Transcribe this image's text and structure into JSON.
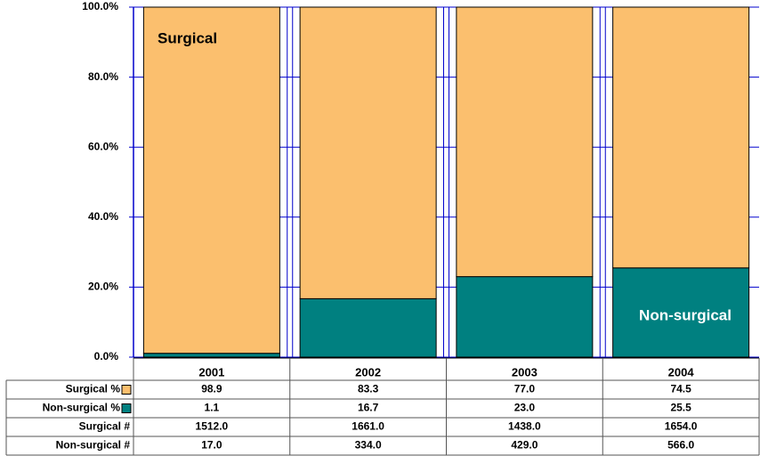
{
  "chart_data": {
    "type": "stacked_bar",
    "categories": [
      "2001",
      "2002",
      "2003",
      "2004"
    ],
    "series": [
      {
        "name": "Non-surgical %",
        "color": "#008080",
        "values": [
          1.1,
          16.7,
          23,
          25.5
        ],
        "value_labels": [
          "1.1",
          "16.7",
          "23.0",
          "25.5"
        ]
      },
      {
        "name": "Surgical %",
        "color": "#FBBF6E",
        "values": [
          98.9,
          83.3,
          77,
          74.5
        ],
        "value_labels": [
          "98.9",
          "83.3",
          "77.0",
          "74.5"
        ]
      }
    ],
    "table_rows": [
      {
        "name": "Surgical #",
        "values": [
          "1512.0",
          "1661.0",
          "1438.0",
          "1654.0"
        ]
      },
      {
        "name": "Non-surgical #",
        "values": [
          "17.0",
          "334.0",
          "429.0",
          "566.0"
        ]
      }
    ],
    "annotations": [
      "Surgical",
      "Non-surgical"
    ],
    "ylim": [
      0,
      100
    ],
    "yticks": [
      {
        "value": 0,
        "label": "0.0%"
      },
      {
        "value": 20,
        "label": "20.0%"
      },
      {
        "value": 40,
        "label": "40.0%"
      },
      {
        "value": 60,
        "label": "60.0%"
      },
      {
        "value": 80,
        "label": "80.0%"
      },
      {
        "value": 100,
        "label": "100.0%"
      }
    ]
  }
}
